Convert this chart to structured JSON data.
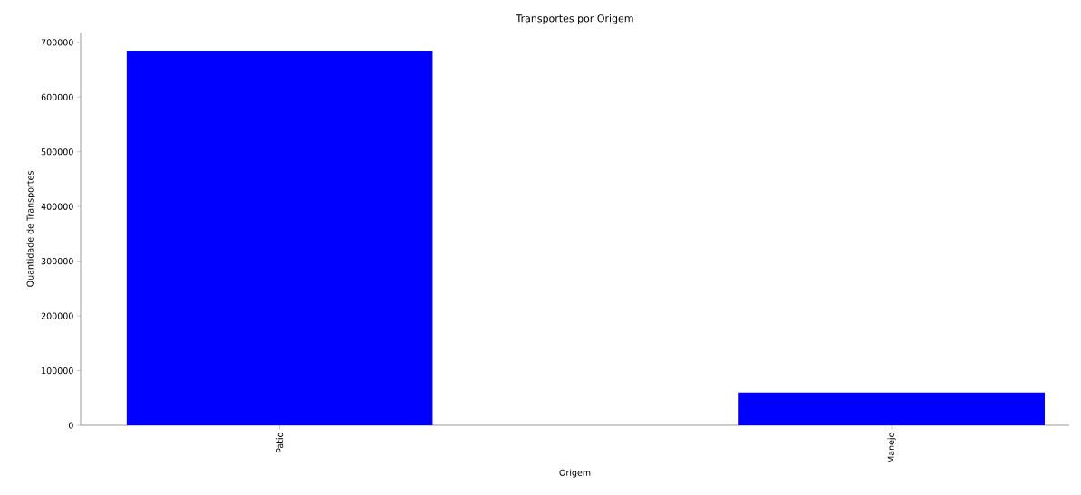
{
  "chart_data": {
    "type": "bar",
    "title": "Transportes por Origem",
    "xlabel": "Origem",
    "ylabel": "Quantidade de Transportes",
    "categories": [
      "Patio",
      "Manejo"
    ],
    "values": [
      685000,
      60000
    ],
    "color": "#0000ff",
    "ylim": [
      0,
      718000
    ],
    "yticks": [
      0,
      100000,
      200000,
      300000,
      400000,
      500000,
      600000,
      700000
    ],
    "grid": false
  }
}
